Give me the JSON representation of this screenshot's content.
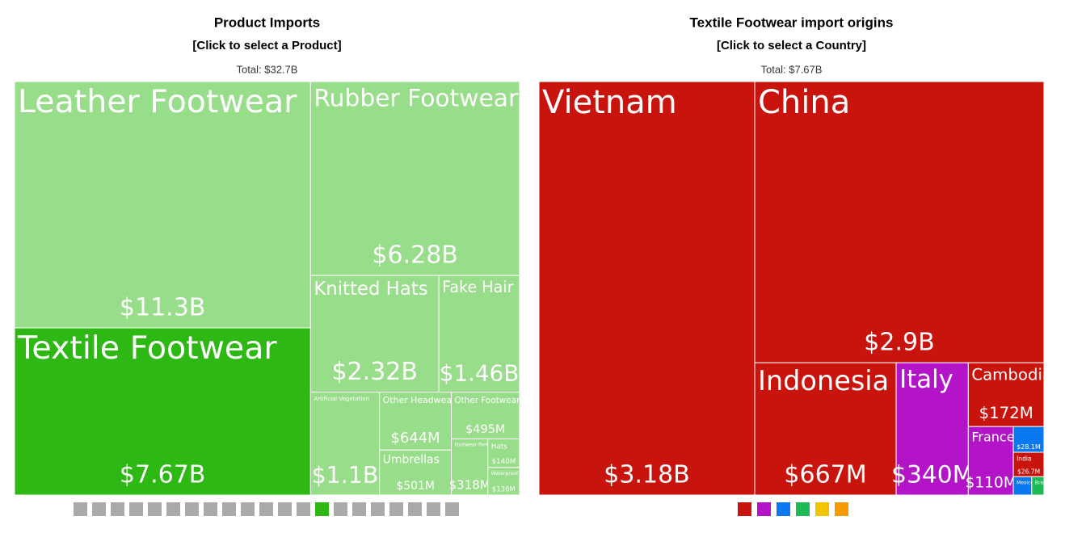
{
  "chart_data": [
    {
      "type": "treemap",
      "title": "Product Imports",
      "subtitle": "[Click to select a Product]",
      "total": {
        "value": 32700000000,
        "label": "Total: $32.7B"
      },
      "categories": [
        "Leather Footwear",
        "Textile Footwear",
        "Rubber Footwear",
        "Knitted Hats",
        "Fake Hair",
        "Artificial Vegetation",
        "Other Headwear",
        "Umbrellas",
        "Other Footwear",
        "Footwear Parts",
        "Hats",
        "Waterproof..."
      ],
      "values": [
        11300000000,
        7670000000,
        6280000000,
        2320000000,
        1460000000,
        1100000000,
        644000000,
        501000000,
        495000000,
        318000000,
        140000000,
        136000000
      ],
      "value_labels": [
        "$11.3B",
        "$7.67B",
        "$6.28B",
        "$2.32B",
        "$1.46B",
        "$1.1B",
        "$644M",
        "$501M",
        "$495M",
        "$318M",
        "$140M",
        "$136M"
      ],
      "colors": [
        "#98dd8a",
        "#2eb814",
        "#98dd8a",
        "#98dd8a",
        "#98dd8a",
        "#98dd8a",
        "#98dd8a",
        "#98dd8a",
        "#98dd8a",
        "#98dd8a",
        "#98dd8a",
        "#98dd8a"
      ]
    },
    {
      "type": "treemap",
      "title": "Textile Footwear import origins",
      "subtitle": "[Click to select a Country]",
      "total": {
        "value": 7670000000,
        "label": "Total: $7.67B"
      },
      "categories": [
        "Vietnam",
        "China",
        "Indonesia",
        "Italy",
        "Cambodia",
        "France",
        null,
        "India",
        "Mexico",
        "Brazil"
      ],
      "values": [
        3180000000,
        2900000000,
        667000000,
        340000000,
        172000000,
        110000000,
        28100000,
        26700000,
        12000000,
        8000000
      ],
      "value_labels": [
        "$3.18B",
        "$2.9B",
        "$667M",
        "$340M",
        "$172M",
        "$110M",
        "$28.1M",
        "$26.7M",
        null,
        null
      ],
      "colors": [
        "#c8140c",
        "#c8140c",
        "#c8140c",
        "#b414c8",
        "#c8140c",
        "#b414c8",
        "#0a78f0",
        "#c8140c",
        "#0a78f0",
        "#1db954"
      ]
    }
  ]
}
